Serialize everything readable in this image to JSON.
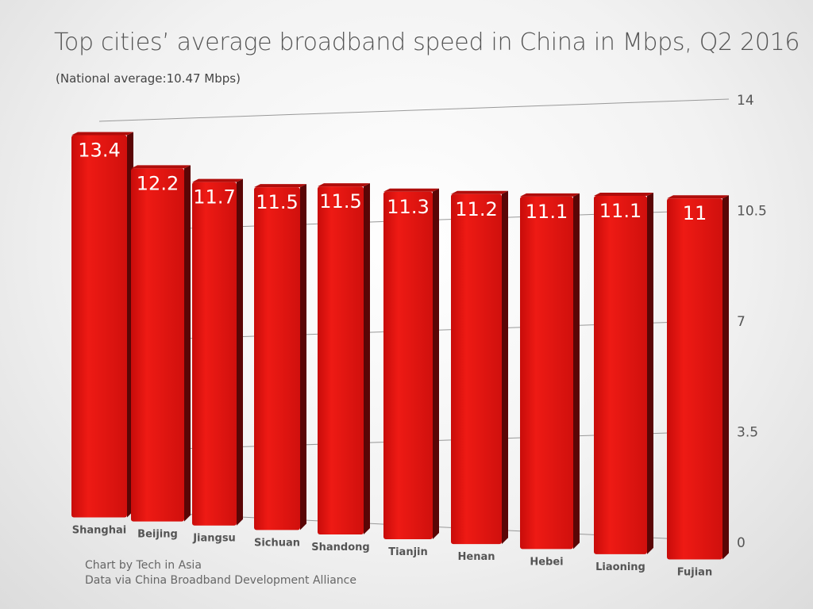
{
  "chart_data": {
    "type": "bar",
    "title": "Top cities’ average broadband speed in China in Mbps, Q2 2016",
    "subtitle": "(National average:10.47 Mbps)",
    "categories": [
      "Shanghai",
      "Beijing",
      "Jiangsu",
      "Sichuan",
      "Shandong",
      "Tianjin",
      "Henan",
      "Hebei",
      "Liaoning",
      "Fujian"
    ],
    "values": [
      13.4,
      12.2,
      11.7,
      11.5,
      11.5,
      11.3,
      11.2,
      11.1,
      11.1,
      11
    ],
    "data_labels": [
      "13.4",
      "12.2",
      "11.7",
      "11.5",
      "11.5",
      "11.3",
      "11.2",
      "11.1",
      "11.1",
      "11"
    ],
    "yticks": [
      "0",
      "3.5",
      "7",
      "10.5",
      "14"
    ],
    "ylim": [
      0,
      14
    ],
    "axis_side": "right",
    "grid": true,
    "style": "3d",
    "bar_color": "#e0120f"
  },
  "credits": [
    "Chart by Tech in Asia",
    "Data via China Broadband Development Alliance"
  ]
}
